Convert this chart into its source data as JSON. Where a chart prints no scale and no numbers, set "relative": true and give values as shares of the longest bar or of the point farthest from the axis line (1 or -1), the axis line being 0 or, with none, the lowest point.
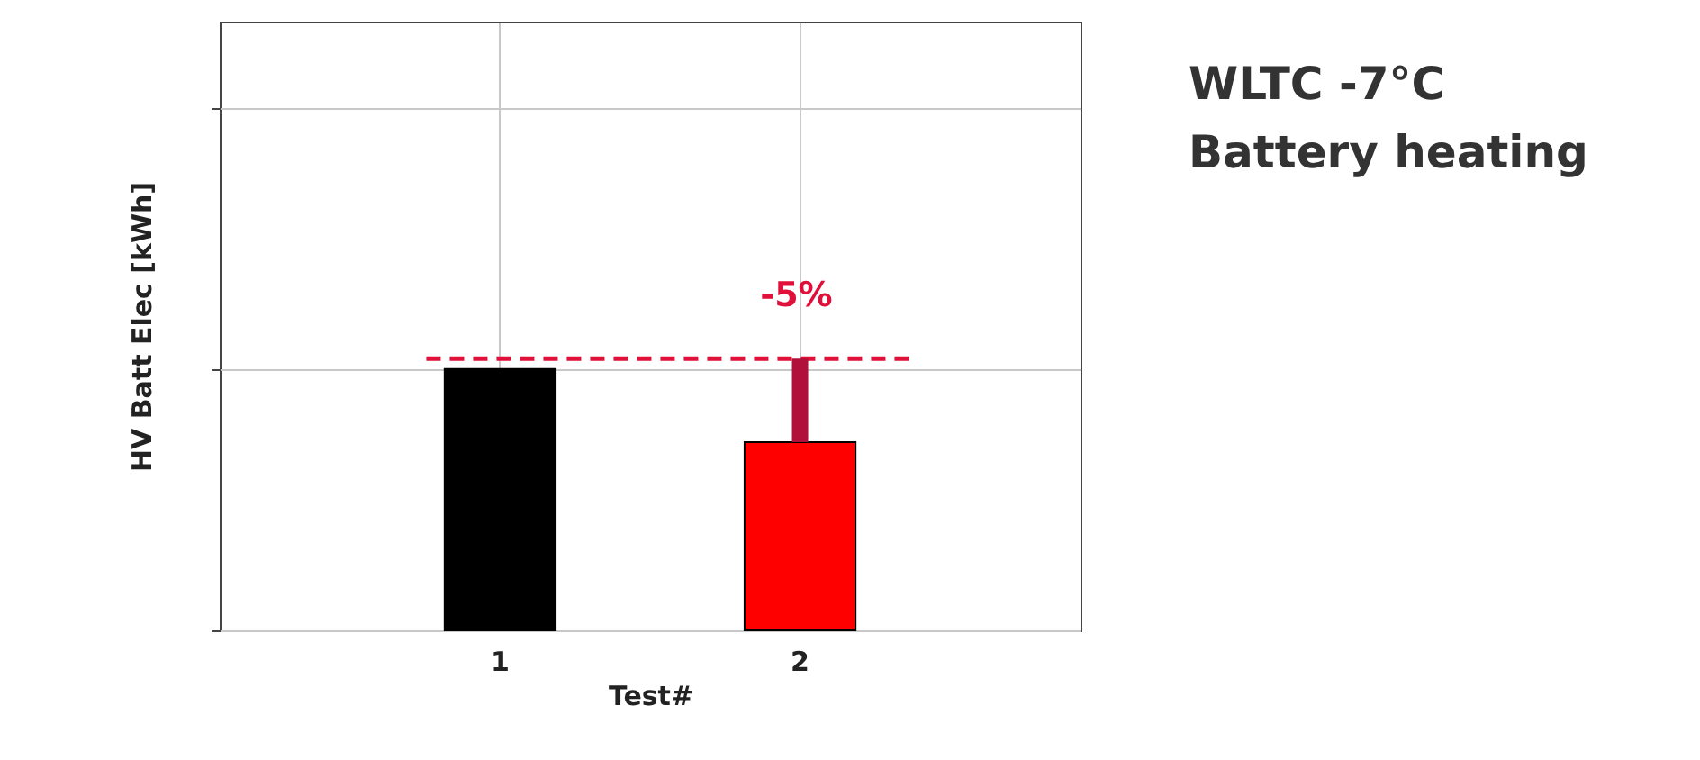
{
  "chart_data": {
    "type": "bar",
    "relative": true,
    "categories": [
      "1",
      "2"
    ],
    "xlabel": "Test#",
    "ylabel": "HV Batt Elec [kWh]",
    "values": [
      1,
      0.72
    ],
    "colors": [
      "#000000",
      "#ff0000"
    ],
    "ref_lines": [
      {
        "axis": "y",
        "value": 1.04,
        "color": "#e0103a",
        "line_style": "dashed"
      }
    ],
    "annotations": [
      "WLTC -7°C",
      "Battery heating",
      "-5%"
    ],
    "grid": true
  }
}
